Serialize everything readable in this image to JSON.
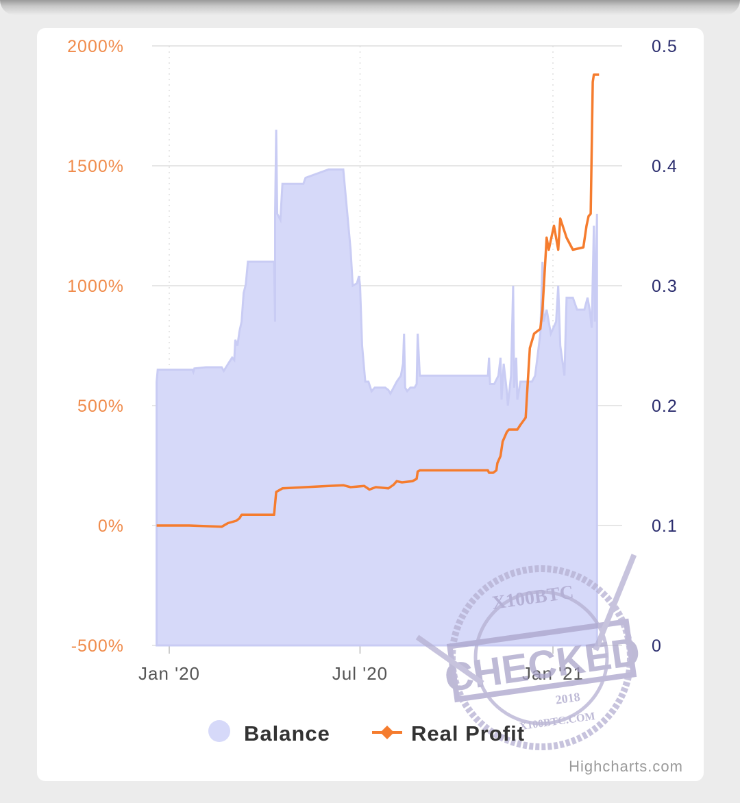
{
  "chart_data": {
    "type": "area+line",
    "x_axis": {
      "tick_labels": [
        "Jan '20",
        "Jul '20",
        "Jan '21"
      ],
      "tick_dates": [
        "2020-01-01",
        "2020-07-01",
        "2021-01-01"
      ],
      "range": [
        "2019-12-20",
        "2021-02-10"
      ]
    },
    "y_axis_left": {
      "tick_labels": [
        "2000%",
        "1500%",
        "1000%",
        "500%",
        "0%",
        "-500%"
      ],
      "ticks": [
        2000,
        1500,
        1000,
        500,
        0,
        -500
      ],
      "range": [
        -500,
        2000
      ],
      "unit": "%",
      "color": "#f08b4b"
    },
    "y_axis_right": {
      "tick_labels": [
        "0.5",
        "0.4",
        "0.3",
        "0.2",
        "0.1",
        "0"
      ],
      "ticks": [
        0.5,
        0.4,
        0.3,
        0.2,
        0.1,
        0
      ],
      "range": [
        0,
        0.5
      ],
      "color": "#2b2d6e"
    },
    "grid": true,
    "legend_position": "bottom-center",
    "series": [
      {
        "name": "Balance",
        "type": "area",
        "axis": "right",
        "color": "#d6d9f9",
        "line_color": "#c9ccf4",
        "points": [
          [
            "2019-12-20",
            0.22
          ],
          [
            "2019-12-21",
            0.23
          ],
          [
            "2020-01-23",
            0.23
          ],
          [
            "2020-01-24",
            0.228
          ],
          [
            "2020-01-25",
            0.231
          ],
          [
            "2020-02-05",
            0.232
          ],
          [
            "2020-02-20",
            0.232
          ],
          [
            "2020-02-22",
            0.229
          ],
          [
            "2020-02-27",
            0.236
          ],
          [
            "2020-03-01",
            0.24
          ],
          [
            "2020-03-03",
            0.238
          ],
          [
            "2020-03-04",
            0.255
          ],
          [
            "2020-03-06",
            0.25
          ],
          [
            "2020-03-08",
            0.262
          ],
          [
            "2020-03-10",
            0.27
          ],
          [
            "2020-03-12",
            0.294
          ],
          [
            "2020-03-14",
            0.301
          ],
          [
            "2020-03-16",
            0.32
          ],
          [
            "2020-03-28",
            0.32
          ],
          [
            "2020-04-10",
            0.32
          ],
          [
            "2020-04-11",
            0.27
          ],
          [
            "2020-04-11",
            0.36
          ],
          [
            "2020-04-12",
            0.43
          ],
          [
            "2020-04-13",
            0.36
          ],
          [
            "2020-04-16",
            0.355
          ],
          [
            "2020-04-18",
            0.385
          ],
          [
            "2020-05-08",
            0.385
          ],
          [
            "2020-05-10",
            0.39
          ],
          [
            "2020-06-01",
            0.397
          ],
          [
            "2020-06-04",
            0.397
          ],
          [
            "2020-06-15",
            0.397
          ],
          [
            "2020-06-22",
            0.33
          ],
          [
            "2020-06-24",
            0.3
          ],
          [
            "2020-06-28",
            0.302
          ],
          [
            "2020-06-30",
            0.308
          ],
          [
            "2020-07-01",
            0.3
          ],
          [
            "2020-07-03",
            0.25
          ],
          [
            "2020-07-06",
            0.22
          ],
          [
            "2020-07-09",
            0.22
          ],
          [
            "2020-07-12",
            0.212
          ],
          [
            "2020-07-15",
            0.215
          ],
          [
            "2020-07-25",
            0.215
          ],
          [
            "2020-07-28",
            0.213
          ],
          [
            "2020-07-30",
            0.21
          ],
          [
            "2020-08-02",
            0.215
          ],
          [
            "2020-08-05",
            0.22
          ],
          [
            "2020-08-09",
            0.225
          ],
          [
            "2020-08-11",
            0.235
          ],
          [
            "2020-08-12",
            0.26
          ],
          [
            "2020-08-13",
            0.215
          ],
          [
            "2020-08-15",
            0.212
          ],
          [
            "2020-08-18",
            0.215
          ],
          [
            "2020-08-22",
            0.215
          ],
          [
            "2020-08-24",
            0.218
          ],
          [
            "2020-08-25",
            0.26
          ],
          [
            "2020-08-27",
            0.225
          ],
          [
            "2020-09-15",
            0.225
          ],
          [
            "2020-10-20",
            0.225
          ],
          [
            "2020-10-31",
            0.225
          ],
          [
            "2020-11-01",
            0.24
          ],
          [
            "2020-11-02",
            0.218
          ],
          [
            "2020-11-06",
            0.218
          ],
          [
            "2020-11-10",
            0.225
          ],
          [
            "2020-11-12",
            0.24
          ],
          [
            "2020-11-13",
            0.205
          ],
          [
            "2020-11-15",
            0.235
          ],
          [
            "2020-11-18",
            0.212
          ],
          [
            "2020-11-19",
            0.2
          ],
          [
            "2020-11-22",
            0.225
          ],
          [
            "2020-11-24",
            0.3
          ],
          [
            "2020-11-25",
            0.215
          ],
          [
            "2020-11-27",
            0.24
          ],
          [
            "2020-11-28",
            0.205
          ],
          [
            "2020-12-01",
            0.22
          ],
          [
            "2020-12-12",
            0.22
          ],
          [
            "2020-12-15",
            0.225
          ],
          [
            "2020-12-20",
            0.26
          ],
          [
            "2020-12-22",
            0.32
          ],
          [
            "2020-12-23",
            0.27
          ],
          [
            "2020-12-26",
            0.28
          ],
          [
            "2020-12-30",
            0.26
          ],
          [
            "2021-01-04",
            0.27
          ],
          [
            "2021-01-06",
            0.3
          ],
          [
            "2021-01-08",
            0.25
          ],
          [
            "2021-01-12",
            0.225
          ],
          [
            "2021-01-14",
            0.29
          ],
          [
            "2021-01-20",
            0.29
          ],
          [
            "2021-01-24",
            0.28
          ],
          [
            "2021-01-31",
            0.28
          ],
          [
            "2021-02-03",
            0.29
          ],
          [
            "2021-02-05",
            0.28
          ],
          [
            "2021-02-07",
            0.265
          ],
          [
            "2021-02-09",
            0.35
          ],
          [
            "2021-02-10",
            0.27
          ],
          [
            "2021-02-12",
            0.36
          ],
          [
            "2021-02-12",
            0.29
          ]
        ]
      },
      {
        "name": "Real Profit",
        "type": "line",
        "axis": "left",
        "color": "#f57c2e",
        "points": [
          [
            "2019-12-20",
            0
          ],
          [
            "2020-01-20",
            0
          ],
          [
            "2020-02-20",
            -5
          ],
          [
            "2020-02-26",
            10
          ],
          [
            "2020-03-05",
            20
          ],
          [
            "2020-03-08",
            30
          ],
          [
            "2020-03-10",
            45
          ],
          [
            "2020-03-26",
            45
          ],
          [
            "2020-04-10",
            45
          ],
          [
            "2020-04-12",
            140
          ],
          [
            "2020-04-18",
            155
          ],
          [
            "2020-05-10",
            160
          ],
          [
            "2020-06-01",
            165
          ],
          [
            "2020-06-15",
            168
          ],
          [
            "2020-06-22",
            160
          ],
          [
            "2020-07-05",
            165
          ],
          [
            "2020-07-10",
            150
          ],
          [
            "2020-07-16",
            160
          ],
          [
            "2020-07-28",
            155
          ],
          [
            "2020-08-02",
            170
          ],
          [
            "2020-08-05",
            185
          ],
          [
            "2020-08-10",
            180
          ],
          [
            "2020-08-20",
            185
          ],
          [
            "2020-08-24",
            195
          ],
          [
            "2020-08-25",
            225
          ],
          [
            "2020-08-27",
            230
          ],
          [
            "2020-10-31",
            230
          ],
          [
            "2020-11-01",
            220
          ],
          [
            "2020-11-05",
            220
          ],
          [
            "2020-11-08",
            230
          ],
          [
            "2020-11-09",
            260
          ],
          [
            "2020-11-12",
            290
          ],
          [
            "2020-11-14",
            350
          ],
          [
            "2020-11-18",
            390
          ],
          [
            "2020-11-20",
            400
          ],
          [
            "2020-11-28",
            400
          ],
          [
            "2020-12-01",
            420
          ],
          [
            "2020-12-06",
            450
          ],
          [
            "2020-12-08",
            600
          ],
          [
            "2020-12-10",
            740
          ],
          [
            "2020-12-14",
            800
          ],
          [
            "2020-12-20",
            820
          ],
          [
            "2020-12-22",
            900
          ],
          [
            "2020-12-26",
            1200
          ],
          [
            "2020-12-28",
            1150
          ],
          [
            "2021-01-02",
            1250
          ],
          [
            "2021-01-06",
            1150
          ],
          [
            "2021-01-08",
            1280
          ],
          [
            "2021-01-14",
            1200
          ],
          [
            "2021-01-20",
            1150
          ],
          [
            "2021-01-30",
            1160
          ],
          [
            "2021-02-02",
            1250
          ],
          [
            "2021-02-04",
            1290
          ],
          [
            "2021-02-06",
            1300
          ],
          [
            "2021-02-08",
            1850
          ],
          [
            "2021-02-09",
            1880
          ],
          [
            "2021-02-14",
            1880
          ]
        ]
      }
    ]
  },
  "legend": {
    "balance_label": "Balance",
    "profit_label": "Real Profit"
  },
  "credits": "Highcharts.com",
  "stamp": {
    "top_text": "X100BTC",
    "main_text": "CHECKED",
    "year": "2018",
    "site": "X100BTC.COM"
  }
}
